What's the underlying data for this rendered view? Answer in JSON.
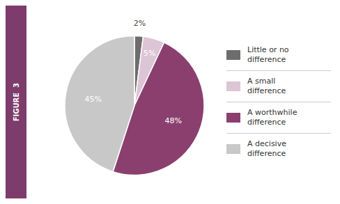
{
  "chart_data": {
    "type": "pie",
    "title": "FIGURE  3",
    "categories": [
      "Little or no\ndifference",
      "A small\ndifference",
      "A worthwhile\ndifference",
      "A decisive\ndifference"
    ],
    "values": [
      2,
      5,
      48,
      45
    ],
    "value_labels": [
      "2%",
      "5%",
      "48%",
      "45%"
    ],
    "colors": [
      "#6d6d6d",
      "#dcc5d4",
      "#8b3f6e",
      "#c8c8c8"
    ],
    "data_labels": true,
    "legend": "right"
  }
}
